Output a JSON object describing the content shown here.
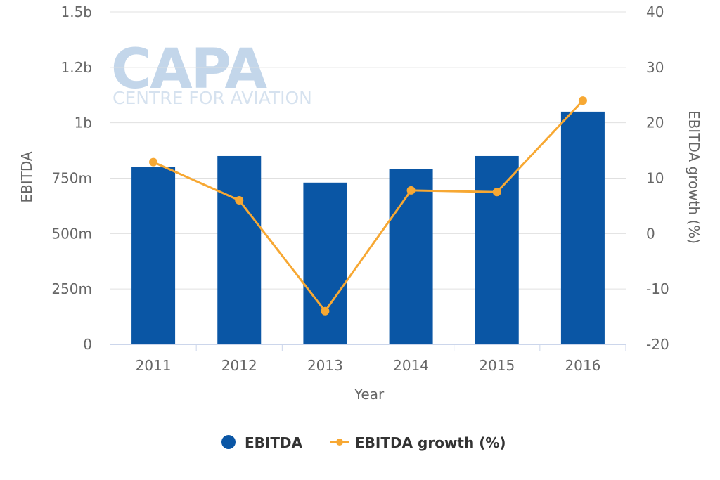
{
  "watermark": {
    "brand": "CAPA",
    "tagline": "CENTRE FOR AVIATION"
  },
  "colors": {
    "bar": "#0a56a5",
    "line": "#f7a833",
    "grid": "#e0e0e0",
    "axis": "#ccd6eb"
  },
  "chart_data": {
    "type": "bar",
    "categories": [
      "2011",
      "2012",
      "2013",
      "2014",
      "2015",
      "2016"
    ],
    "series": [
      {
        "name": "EBITDA",
        "type": "bar",
        "axis": "left",
        "values": [
          800000000,
          850000000,
          730000000,
          790000000,
          850000000,
          1050000000
        ]
      },
      {
        "name": "EBITDA growth (%)",
        "type": "line",
        "axis": "right",
        "values": [
          12.9,
          6.0,
          -14.0,
          7.8,
          7.5,
          24.0
        ]
      }
    ],
    "xlabel": "Year",
    "ylabel": "EBITDA",
    "y2label": "EBITDA growth (%)",
    "ylim": [
      0,
      1500000000
    ],
    "y2lim": [
      -20,
      40
    ],
    "yticks": [
      "0",
      "250m",
      "500m",
      "750m",
      "1b",
      "1.2b",
      "1.5b"
    ],
    "y2ticks": [
      "-20",
      "-10",
      "0",
      "10",
      "20",
      "30",
      "40"
    ],
    "grid": true,
    "legend": "bottom-center"
  }
}
